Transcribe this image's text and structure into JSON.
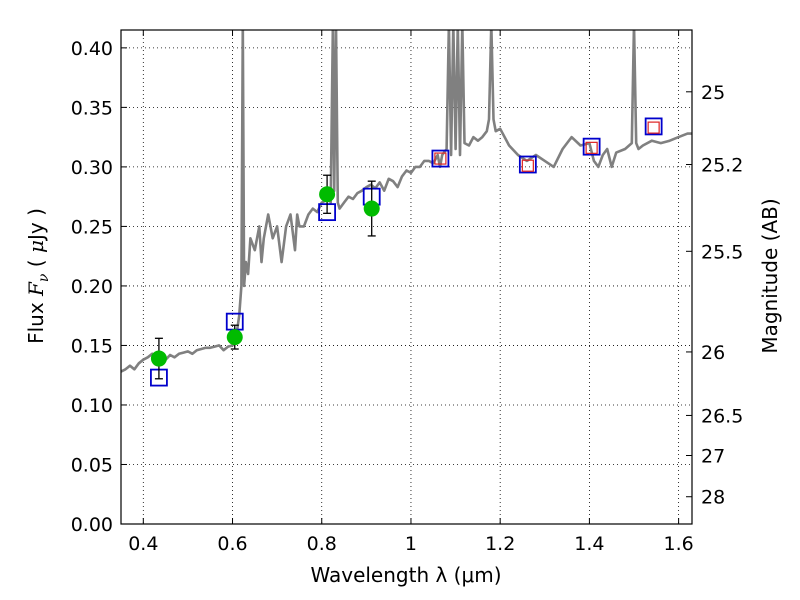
{
  "chart_data": {
    "type": "scatter",
    "title": "",
    "xlabel": "Wavelength  λ (μm)",
    "ylabel": "Flux  F_ν  ( μJy )",
    "ylabel_parts": [
      "Flux  ",
      "F",
      "ν",
      "  ( ",
      "μ",
      "Jy )"
    ],
    "y2label": "Magnitude (AB)",
    "xlim": [
      0.35,
      1.63
    ],
    "ylim": [
      0.0,
      0.415
    ],
    "x_ticks": [
      0.4,
      0.6,
      0.8,
      1.0,
      1.2,
      1.4,
      1.6
    ],
    "x_tick_labels": [
      "0.4",
      "0.6",
      "0.8",
      "1",
      "1.2",
      "1.4",
      "1.6"
    ],
    "y_ticks": [
      0.0,
      0.05,
      0.1,
      0.15,
      0.2,
      0.25,
      0.3,
      0.35,
      0.4
    ],
    "y_tick_labels": [
      "0.00",
      "0.05",
      "0.10",
      "0.15",
      "0.20",
      "0.25",
      "0.30",
      "0.35",
      "0.40"
    ],
    "y2_ticks": [
      25,
      25.2,
      25.5,
      26,
      26.5,
      27,
      28
    ],
    "y2_tick_labels": [
      "25",
      "25.2",
      "25.5",
      "26",
      "26.5",
      "27",
      "28"
    ],
    "grid": true,
    "colors": {
      "spectrum": "#808080",
      "observed": "#00bb00",
      "model_box": "#0000cc",
      "model_red": "#dd2222",
      "axis": "#000000",
      "grid": "#000000"
    },
    "series": [
      {
        "kind": "spectrum",
        "x": [
          0.35,
          0.36,
          0.37,
          0.38,
          0.39,
          0.4,
          0.41,
          0.42,
          0.43,
          0.44,
          0.45,
          0.46,
          0.47,
          0.48,
          0.49,
          0.5,
          0.51,
          0.52,
          0.53,
          0.54,
          0.55,
          0.56,
          0.57,
          0.58,
          0.59,
          0.6,
          0.605,
          0.61,
          0.615,
          0.62,
          0.623,
          0.626,
          0.63,
          0.635,
          0.64,
          0.65,
          0.66,
          0.665,
          0.67,
          0.68,
          0.69,
          0.7,
          0.71,
          0.72,
          0.73,
          0.74,
          0.745,
          0.75,
          0.76,
          0.77,
          0.78,
          0.79,
          0.8,
          0.81,
          0.815,
          0.82,
          0.825,
          0.828,
          0.832,
          0.836,
          0.84,
          0.85,
          0.86,
          0.87,
          0.88,
          0.89,
          0.9,
          0.91,
          0.92,
          0.93,
          0.94,
          0.95,
          0.96,
          0.97,
          0.98,
          0.99,
          1.0,
          1.01,
          1.02,
          1.03,
          1.04,
          1.05,
          1.06,
          1.065,
          1.07,
          1.08,
          1.085,
          1.09,
          1.095,
          1.1,
          1.105,
          1.11,
          1.115,
          1.12,
          1.13,
          1.14,
          1.15,
          1.16,
          1.17,
          1.175,
          1.18,
          1.185,
          1.19,
          1.2,
          1.22,
          1.24,
          1.26,
          1.28,
          1.3,
          1.32,
          1.34,
          1.36,
          1.38,
          1.4,
          1.41,
          1.42,
          1.43,
          1.44,
          1.45,
          1.46,
          1.48,
          1.495,
          1.5,
          1.505,
          1.51,
          1.52,
          1.54,
          1.56,
          1.58,
          1.6,
          1.62,
          1.63
        ],
        "y": [
          0.128,
          0.13,
          0.133,
          0.13,
          0.135,
          0.138,
          0.14,
          0.143,
          0.135,
          0.137,
          0.138,
          0.142,
          0.14,
          0.143,
          0.144,
          0.145,
          0.143,
          0.146,
          0.147,
          0.148,
          0.148,
          0.149,
          0.15,
          0.146,
          0.149,
          0.15,
          0.152,
          0.162,
          0.175,
          0.2,
          0.42,
          0.2,
          0.22,
          0.21,
          0.24,
          0.23,
          0.25,
          0.22,
          0.24,
          0.26,
          0.24,
          0.25,
          0.22,
          0.25,
          0.26,
          0.23,
          0.26,
          0.25,
          0.25,
          0.26,
          0.265,
          0.262,
          0.27,
          0.272,
          0.275,
          0.27,
          0.42,
          0.28,
          0.42,
          0.27,
          0.265,
          0.27,
          0.275,
          0.273,
          0.278,
          0.28,
          0.283,
          0.285,
          0.282,
          0.287,
          0.28,
          0.29,
          0.288,
          0.283,
          0.292,
          0.297,
          0.295,
          0.3,
          0.3,
          0.305,
          0.305,
          0.303,
          0.31,
          0.3,
          0.31,
          0.315,
          0.42,
          0.31,
          0.42,
          0.315,
          0.42,
          0.31,
          0.42,
          0.32,
          0.318,
          0.325,
          0.322,
          0.325,
          0.33,
          0.34,
          0.42,
          0.34,
          0.33,
          0.332,
          0.318,
          0.31,
          0.305,
          0.31,
          0.305,
          0.3,
          0.315,
          0.325,
          0.318,
          0.32,
          0.305,
          0.3,
          0.31,
          0.315,
          0.3,
          0.312,
          0.315,
          0.32,
          0.42,
          0.32,
          0.315,
          0.318,
          0.322,
          0.32,
          0.322,
          0.325,
          0.328,
          0.328
        ]
      },
      {
        "kind": "observed",
        "x": [
          0.435,
          0.605,
          0.812,
          0.912
        ],
        "y": [
          0.139,
          0.157,
          0.277,
          0.265
        ],
        "yerr": [
          0.017,
          0.01,
          0.016,
          0.023
        ]
      },
      {
        "kind": "model_box",
        "x": [
          0.435,
          0.605,
          0.812,
          0.912,
          1.066,
          1.262,
          1.405,
          1.544
        ],
        "y": [
          0.123,
          0.17,
          0.262,
          0.275,
          0.307,
          0.302,
          0.317,
          0.334
        ]
      },
      {
        "kind": "model_red",
        "x": [
          1.066,
          1.262,
          1.405,
          1.544
        ],
        "y": [
          0.307,
          0.301,
          0.316,
          0.333
        ]
      }
    ]
  }
}
